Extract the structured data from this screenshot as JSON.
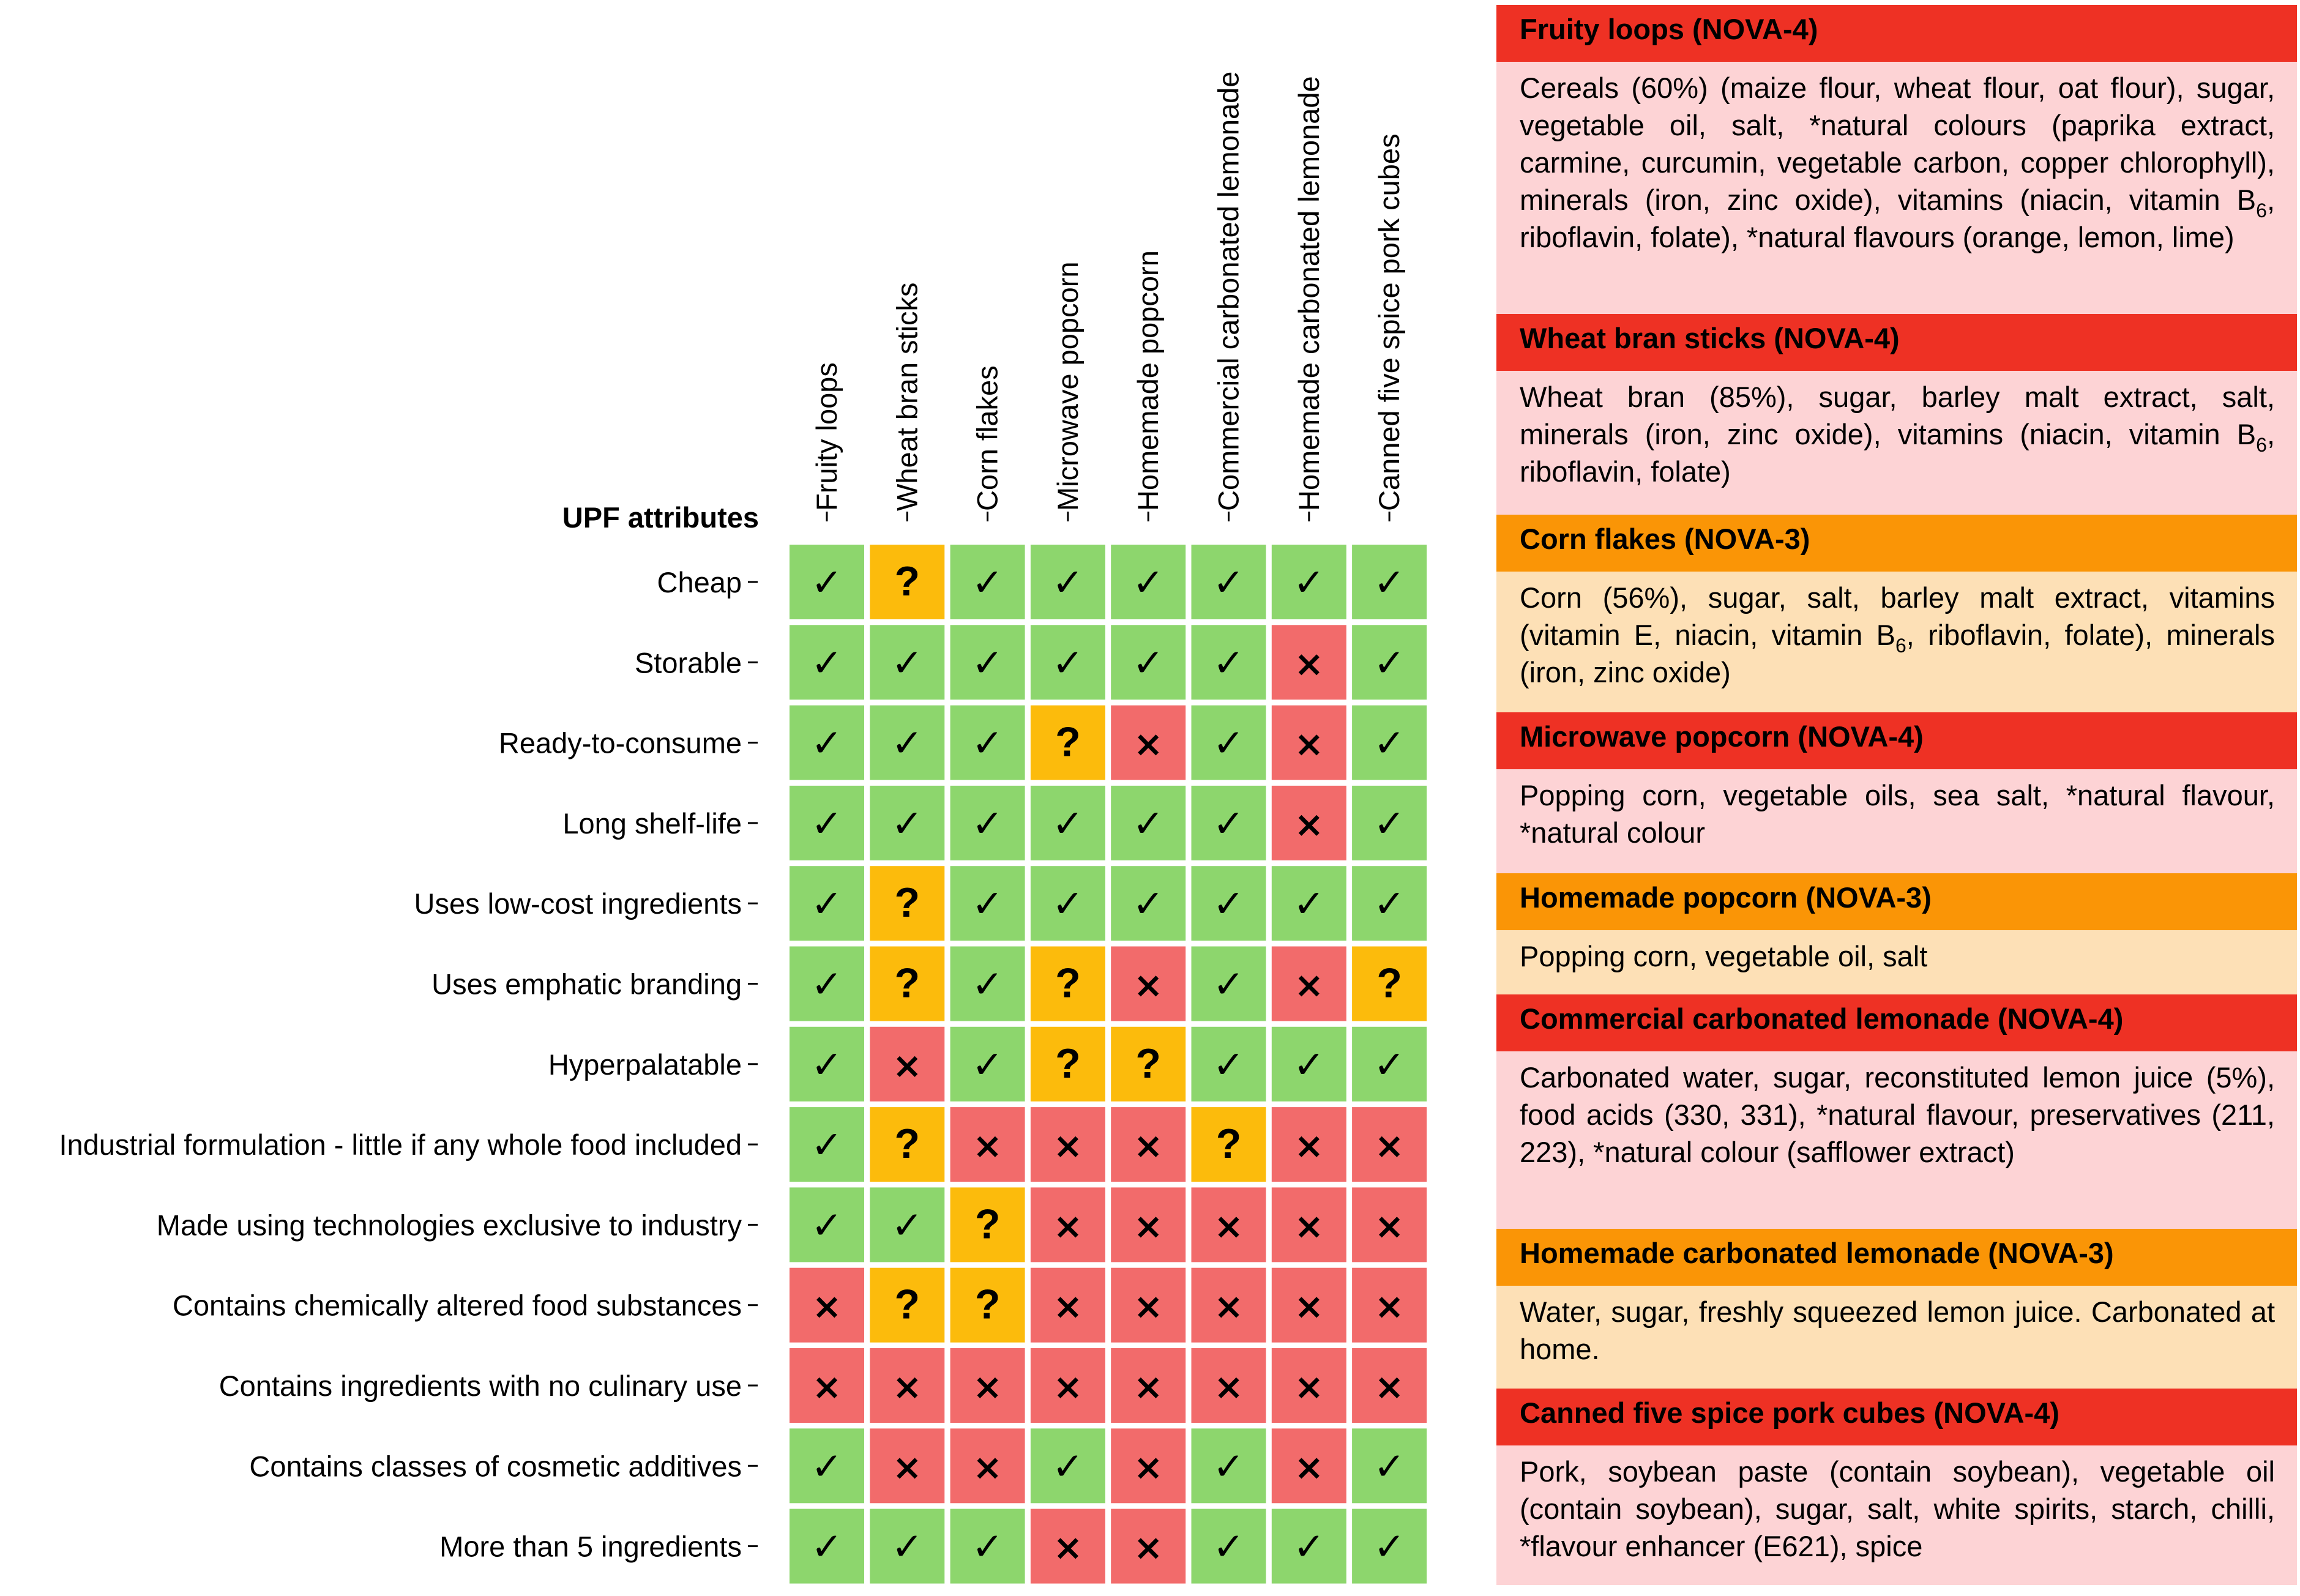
{
  "chart_data": {
    "type": "table",
    "title": "",
    "row_axis_label": "UPF attributes",
    "columns": [
      "Fruity loops",
      "Wheat bran sticks",
      "Corn flakes",
      "Microwave popcorn",
      "Homemade popcorn",
      "Commercial carbonated lemonade",
      "Homemade carbonated lemonade",
      "Canned five spice pork cubes"
    ],
    "rows": [
      "Cheap",
      "Storable",
      "Ready-to-consume",
      "Long shelf-life",
      "Uses low-cost ingredients",
      "Uses emphatic branding",
      "Hyperpalatable",
      "Industrial formulation - little if any whole food included",
      "Made using technologies exclusive to industry",
      "Contains chemically altered food substances",
      "Contains ingredients with no culinary use",
      "Contains classes of cosmetic additives",
      "More than 5 ingredients"
    ],
    "values": [
      [
        "yes",
        "unsure",
        "yes",
        "yes",
        "yes",
        "yes",
        "yes",
        "yes"
      ],
      [
        "yes",
        "yes",
        "yes",
        "yes",
        "yes",
        "yes",
        "no",
        "yes"
      ],
      [
        "yes",
        "yes",
        "yes",
        "unsure",
        "no",
        "yes",
        "no",
        "yes"
      ],
      [
        "yes",
        "yes",
        "yes",
        "yes",
        "yes",
        "yes",
        "no",
        "yes"
      ],
      [
        "yes",
        "unsure",
        "yes",
        "yes",
        "yes",
        "yes",
        "yes",
        "yes"
      ],
      [
        "yes",
        "unsure",
        "yes",
        "unsure",
        "no",
        "yes",
        "no",
        "unsure"
      ],
      [
        "yes",
        "no",
        "yes",
        "unsure",
        "unsure",
        "yes",
        "yes",
        "yes"
      ],
      [
        "yes",
        "unsure",
        "no",
        "no",
        "no",
        "unsure",
        "no",
        "no"
      ],
      [
        "yes",
        "yes",
        "unsure",
        "no",
        "no",
        "no",
        "no",
        "no"
      ],
      [
        "no",
        "unsure",
        "unsure",
        "no",
        "no",
        "no",
        "no",
        "no"
      ],
      [
        "no",
        "no",
        "no",
        "no",
        "no",
        "no",
        "no",
        "no"
      ],
      [
        "yes",
        "no",
        "no",
        "yes",
        "no",
        "yes",
        "no",
        "yes"
      ],
      [
        "yes",
        "yes",
        "yes",
        "no",
        "no",
        "yes",
        "yes",
        "yes"
      ]
    ],
    "symbols": {
      "yes": "✓",
      "no": "×",
      "unsure": "?"
    },
    "colors": {
      "yes": "#8dd66d",
      "no": "#f26b6b",
      "unsure": "#fcbb0c"
    }
  },
  "ingredients_panel": [
    {
      "title": "Fruity loops (NOVA-4)",
      "nova": 4,
      "text_parts": [
        "Cereals (60%) (maize flour, wheat flour, oat flour), sugar, vegetable oil, salt, *natural colours (paprika extract, carmine, curcumin, vegetable carbon, copper chlorophyll), minerals (iron, zinc oxide), vitamins (niacin, vitamin B",
        "6",
        ", riboflavin, folate), *natural flavours (orange, lemon, lime)"
      ]
    },
    {
      "title": "Wheat bran sticks (NOVA-4)",
      "nova": 4,
      "text_parts": [
        "Wheat bran (85%), sugar, barley malt extract, salt, minerals (iron, zinc oxide), vitamins (niacin, vitamin B",
        "6",
        ", riboflavin, folate)"
      ]
    },
    {
      "title": "Corn flakes (NOVA-3)",
      "nova": 3,
      "text_parts": [
        "Corn (56%), sugar, salt, barley malt extract, vitamins (vitamin E, niacin, vitamin B",
        "6",
        ", riboflavin, folate), minerals (iron, zinc oxide)"
      ]
    },
    {
      "title": "Microwave popcorn (NOVA-4)",
      "nova": 4,
      "text_parts": [
        "Popping corn, vegetable oils, sea salt, *natural flavour, *natural colour",
        "",
        ""
      ]
    },
    {
      "title": "Homemade popcorn (NOVA-3)",
      "nova": 3,
      "text_parts": [
        "Popping corn, vegetable oil, salt",
        "",
        ""
      ]
    },
    {
      "title": "Commercial carbonated lemonade (NOVA-4)",
      "nova": 4,
      "text_parts": [
        "Carbonated water, sugar, reconstituted lemon juice (5%), food acids (330, 331), *natural flavour, preservatives (211, 223), *natural colour (safflower extract)",
        "",
        ""
      ]
    },
    {
      "title": "Homemade carbonated lemonade (NOVA-3)",
      "nova": 3,
      "text_parts": [
        "Water, sugar, freshly squeezed lemon juice. Carbonated at home.",
        "",
        ""
      ]
    },
    {
      "title": "Canned five spice pork cubes (NOVA-4)",
      "nova": 4,
      "text_parts": [
        "Pork, soybean paste (contain soybean), vegetable oil (contain soybean), sugar, salt, white spirits, starch, chilli, *flavour enhancer (E621), spice",
        "",
        ""
      ]
    }
  ],
  "panel_colors": {
    "nova4_header": "#ee3124",
    "nova4_body": "#fdd3d5",
    "nova3_header": "#fa9506",
    "nova3_body": "#fde0b6"
  }
}
